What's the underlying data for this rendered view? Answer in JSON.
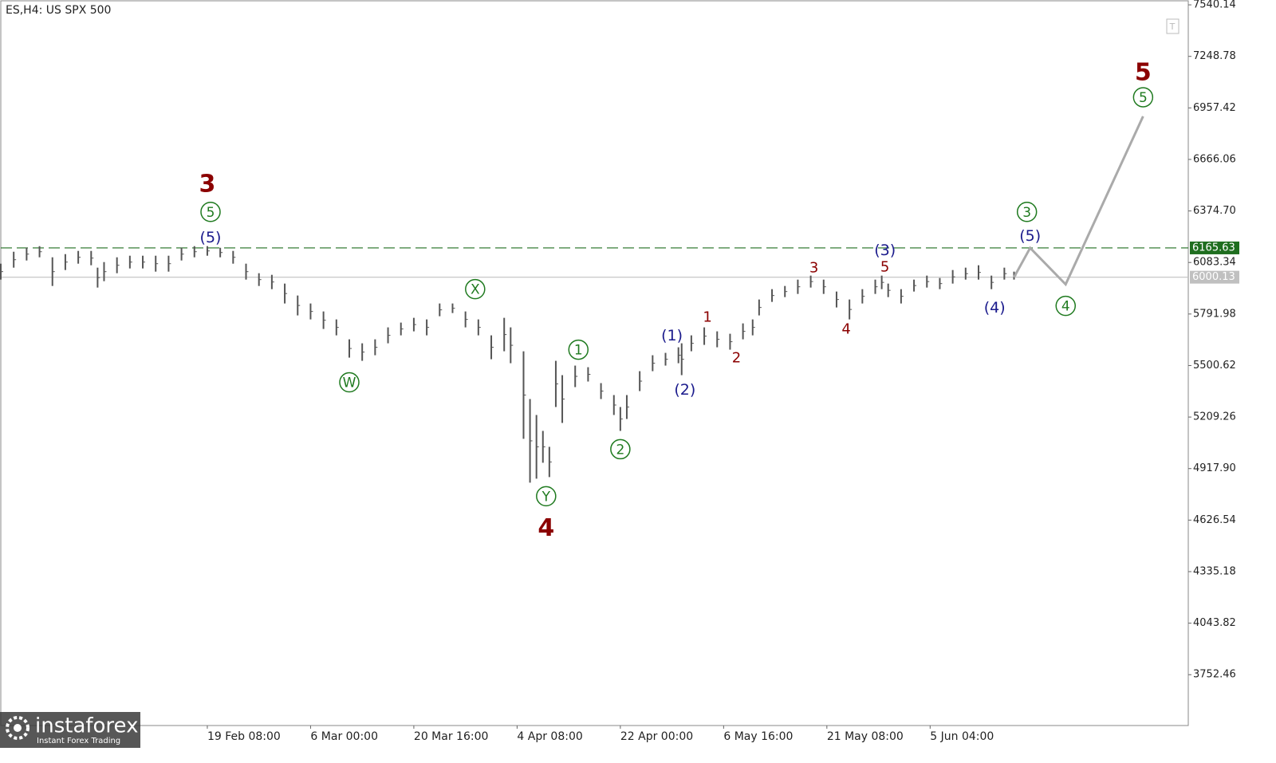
{
  "chart_data": {
    "type": "hilo",
    "title": "ES,H4:  US SPX 500",
    "color": "#555555",
    "x": [
      0,
      4,
      8,
      12,
      16,
      20,
      24,
      28,
      30,
      32,
      36,
      40,
      44,
      48,
      52,
      56,
      60,
      64,
      68,
      72,
      76,
      80,
      84,
      88,
      92,
      96,
      100,
      104,
      108,
      112,
      116,
      120,
      124,
      128,
      132,
      136,
      140,
      144,
      148,
      152,
      156,
      158,
      162,
      164,
      166,
      168,
      170,
      172,
      174,
      178,
      182,
      186,
      190,
      192,
      194,
      198,
      202,
      206,
      210,
      211,
      214,
      218,
      222,
      226,
      230,
      233,
      235,
      239,
      243,
      247,
      251,
      255,
      259,
      263,
      267,
      271,
      273,
      275,
      279,
      283,
      287,
      291,
      295,
      299,
      303,
      307,
      311,
      314
    ],
    "high": [
      6076.6,
      6144.1,
      6166.7,
      6175.7,
      6112.6,
      6130.6,
      6148.7,
      6148.7,
      6054.1,
      6085.6,
      6112.6,
      6121.6,
      6121.6,
      6121.6,
      6121.6,
      6166.7,
      6175.7,
      6175.7,
      6166.7,
      6148.7,
      6076.6,
      6022.6,
      6013.6,
      5964.0,
      5896.5,
      5851.5,
      5806.4,
      5761.4,
      5648.8,
      5626.3,
      5648.8,
      5716.4,
      5743.4,
      5770.4,
      5761.4,
      5851.5,
      5851.5,
      5806.4,
      5761.4,
      5671.3,
      5770.4,
      5716.4,
      5581.3,
      5311.1,
      5221.0,
      5131.0,
      5040.9,
      5527.2,
      5446.2,
      5500.2,
      5491.2,
      5401.2,
      5333.6,
      5266.1,
      5333.6,
      5468.7,
      5558.8,
      5572.3,
      5603.8,
      5626.3,
      5671.3,
      5716.4,
      5693.9,
      5680.3,
      5738.9,
      5761.4,
      5874.0,
      5932.5,
      5950.5,
      5986.5,
      6009.1,
      5986.5,
      5919.0,
      5874.0,
      5932.5,
      5986.5,
      6009.1,
      5964.0,
      5932.5,
      5986.5,
      6009.1,
      5995.6,
      6040.6,
      6054.1,
      6067.6,
      6009.1,
      6054.1,
      6031.6
    ],
    "low": [
      5986.5,
      6054.1,
      6094.6,
      6112.6,
      5950.5,
      6040.6,
      6076.6,
      6067.6,
      5941.5,
      5977.5,
      6022.6,
      6049.6,
      6049.6,
      6031.6,
      6031.6,
      6094.6,
      6112.6,
      6121.6,
      6112.6,
      6076.6,
      5986.5,
      5950.5,
      5932.5,
      5851.5,
      5784.0,
      5761.4,
      5707.4,
      5671.3,
      5545.3,
      5527.2,
      5558.8,
      5626.3,
      5671.3,
      5693.9,
      5671.3,
      5779.4,
      5797.4,
      5716.4,
      5671.3,
      5536.3,
      5581.3,
      5513.7,
      5086.0,
      4838.3,
      4860.8,
      4950.9,
      4869.8,
      5266.1,
      5176.0,
      5378.6,
      5410.2,
      5311.1,
      5221.0,
      5131.0,
      5198.5,
      5356.1,
      5468.7,
      5500.2,
      5513.7,
      5446.2,
      5581.3,
      5617.3,
      5603.8,
      5590.3,
      5648.8,
      5671.3,
      5784.0,
      5860.5,
      5887.5,
      5905.5,
      5941.5,
      5905.5,
      5829.0,
      5761.4,
      5851.5,
      5905.5,
      5932.5,
      5887.5,
      5851.5,
      5919.0,
      5941.5,
      5932.5,
      5964.0,
      5986.5,
      5986.5,
      5932.5,
      5986.5,
      5986.5
    ],
    "projection": {
      "x": [
        314,
        319,
        330,
        354
      ],
      "values": [
        6000.13,
        6165.63,
        5959.5,
        6909.7
      ],
      "color": "#aaaaaa"
    },
    "levels": [
      {
        "value": 6165.63,
        "color": "#1f6e1f",
        "style": "dashed"
      },
      {
        "value": 6000.13,
        "color": "#c0c0c0",
        "style": "solid"
      }
    ],
    "xlim": [
      0,
      368
    ],
    "ylim": [
      3465,
      7563
    ],
    "yticks": [
      7540.14,
      7248.78,
      6957.42,
      6666.06,
      {
        "value": 6374.7,
        "label": "6374.70"
      },
      6083.34,
      5791.98,
      5500.62,
      5209.26,
      {
        "value": 4917.9,
        "label": "4917.90"
      },
      4626.54,
      4335.18,
      4043.82,
      3752.46
    ],
    "xticks": [
      {
        "value": 64,
        "label": "19 Feb 08:00"
      },
      {
        "value": 96,
        "label": "6 Mar 00:00"
      },
      {
        "value": 128,
        "label": "20 Mar 16:00"
      },
      {
        "value": 160,
        "label": "4 Apr 08:00"
      },
      {
        "value": 192,
        "label": "22 Apr 00:00"
      },
      {
        "value": 224,
        "label": "6 May 16:00"
      },
      {
        "value": 256,
        "label": "21 May 08:00"
      },
      {
        "value": 288,
        "label": "5 Jun 04:00"
      }
    ],
    "annotations": [
      {
        "text": "3",
        "x": 64,
        "y": 6527,
        "color": "#8b0000",
        "degree": "primary"
      },
      {
        "text": "5",
        "x": 65,
        "y": 6369.3,
        "color": "#1f7a1f",
        "circle": true
      },
      {
        "text": "(5)",
        "x": 65,
        "y": 6225.2,
        "color": "#1a1a8c"
      },
      {
        "text": "W",
        "x": 108,
        "y": 5405.7,
        "color": "#1f7a1f",
        "circle": true
      },
      {
        "text": "X",
        "x": 147,
        "y": 5932.5,
        "color": "#1f7a1f",
        "circle": true
      },
      {
        "text": "Y",
        "x": 169,
        "y": 4761.7,
        "color": "#1f7a1f",
        "circle": true
      },
      {
        "text": "4",
        "x": 169,
        "y": 4581.6,
        "color": "#8b0000",
        "degree": "primary"
      },
      {
        "text": "1",
        "x": 179,
        "y": 5590.3,
        "color": "#1f7a1f",
        "circle": true
      },
      {
        "text": "2",
        "x": 192,
        "y": 5027.4,
        "color": "#1f7a1f",
        "circle": true
      },
      {
        "text": "(1)",
        "x": 208,
        "y": 5671.3,
        "color": "#1a1a8c"
      },
      {
        "text": "(2)",
        "x": 212,
        "y": 5365.1,
        "color": "#1a1a8c"
      },
      {
        "text": "1",
        "x": 219,
        "y": 5774.9,
        "color": "#8b0000"
      },
      {
        "text": "2",
        "x": 228,
        "y": 5545.3,
        "color": "#8b0000"
      },
      {
        "text": "3",
        "x": 252,
        "y": 6054.1,
        "color": "#8b0000"
      },
      {
        "text": "4",
        "x": 262,
        "y": 5707.4,
        "color": "#8b0000"
      },
      {
        "text": "(3)",
        "x": 274,
        "y": 6153.2,
        "color": "#1a1a8c"
      },
      {
        "text": "5",
        "x": 274,
        "y": 6058.6,
        "color": "#8b0000"
      },
      {
        "text": "(4)",
        "x": 308,
        "y": 5829,
        "color": "#1a1a8c"
      },
      {
        "text": "3",
        "x": 318,
        "y": 6369.3,
        "color": "#1f7a1f",
        "circle": true
      },
      {
        "text": "(5)",
        "x": 319,
        "y": 6234.2,
        "color": "#1a1a8c"
      },
      {
        "text": "4",
        "x": 330,
        "y": 5838,
        "color": "#1f7a1f",
        "circle": true
      },
      {
        "text": "5",
        "x": 354,
        "y": 7157.3,
        "color": "#8b0000",
        "degree": "primary"
      },
      {
        "text": "5",
        "x": 354,
        "y": 7017.7,
        "color": "#1f7a1f",
        "circle": true
      }
    ]
  },
  "watermark": {
    "brand": "instaforex",
    "tagline": "Instant Forex Trading"
  }
}
